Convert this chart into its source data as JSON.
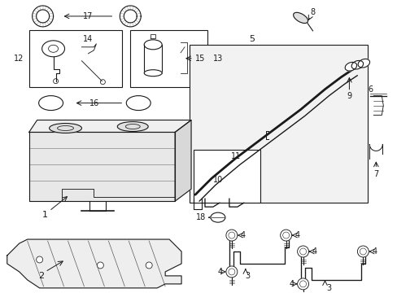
{
  "bg_color": "#ffffff",
  "line_color": "#1a1a1a",
  "lw": 0.8,
  "fs": 7,
  "fig_w": 4.89,
  "fig_h": 3.6,
  "dpi": 100
}
